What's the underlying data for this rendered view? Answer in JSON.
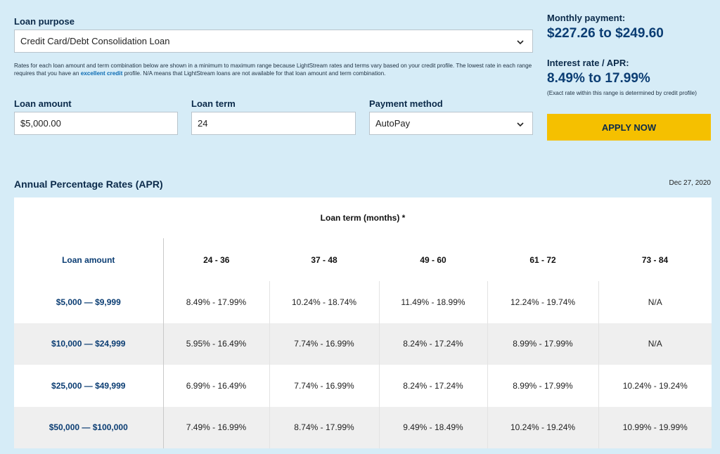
{
  "form": {
    "purpose_label": "Loan purpose",
    "purpose_value": "Credit Card/Debt Consolidation Loan",
    "disclaimer_before": "Rates for each loan amount and term combination below are shown in a minimum to maximum range because LightStream rates and terms vary based on your credit profile. The lowest rate in each range requires that you have an ",
    "disclaimer_link": "excellent credit",
    "disclaimer_after": " profile. N/A means that LightStream loans are not available for that loan amount and term combination.",
    "amount_label": "Loan amount",
    "amount_value": "$5,000.00",
    "term_label": "Loan term",
    "term_value": "24",
    "method_label": "Payment method",
    "method_value": "AutoPay"
  },
  "summary": {
    "monthly_label": "Monthly payment:",
    "monthly_value": "$227.26 to $249.60",
    "rate_label": "Interest rate / APR:",
    "rate_value": "8.49% to 17.99%",
    "rate_note": "(Exact rate within this range is determined by credit profile)",
    "apply_label": "APPLY NOW"
  },
  "apr_section": {
    "title": "Annual Percentage Rates (APR)",
    "date": "Dec 27, 2020",
    "term_header": "Loan term (months) *",
    "amount_header": "Loan amount",
    "terms": [
      "24 - 36",
      "37 - 48",
      "49 - 60",
      "61 - 72",
      "73 - 84"
    ],
    "rows": [
      {
        "amount": "$5,000 — $9,999",
        "rates": [
          "8.49% - 17.99%",
          "10.24% - 18.74%",
          "11.49% - 18.99%",
          "12.24% - 19.74%",
          "N/A"
        ]
      },
      {
        "amount": "$10,000 — $24,999",
        "rates": [
          "5.95% - 16.49%",
          "7.74% - 16.99%",
          "8.24% - 17.24%",
          "8.99% - 17.99%",
          "N/A"
        ]
      },
      {
        "amount": "$25,000 — $49,999",
        "rates": [
          "6.99% - 16.49%",
          "7.74% - 16.99%",
          "8.24% - 17.24%",
          "8.99% - 17.99%",
          "10.24% - 19.24%"
        ]
      },
      {
        "amount": "$50,000 — $100,000",
        "rates": [
          "7.49% - 16.99%",
          "8.74% - 17.99%",
          "9.49% - 18.49%",
          "10.24% - 19.24%",
          "10.99% - 19.99%"
        ]
      }
    ]
  },
  "icons": {
    "select_chevron": "chevron-down-icon"
  },
  "colors": {
    "background": "#d6ecf7",
    "apply_button": "#f5c000",
    "accent_text": "#0b3d73",
    "link": "#0b6bb3"
  }
}
